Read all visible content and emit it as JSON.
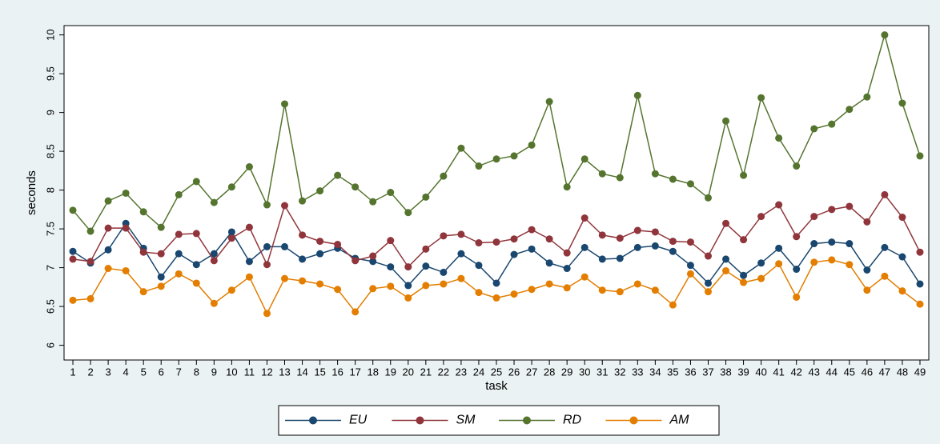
{
  "chart_data": {
    "type": "line",
    "x_label": "task",
    "y_label": "seconds",
    "x": [
      1,
      2,
      3,
      4,
      5,
      6,
      7,
      8,
      9,
      10,
      11,
      12,
      13,
      14,
      15,
      16,
      17,
      18,
      19,
      20,
      21,
      22,
      23,
      24,
      25,
      26,
      27,
      28,
      29,
      30,
      31,
      32,
      33,
      34,
      35,
      36,
      37,
      38,
      39,
      40,
      41,
      42,
      43,
      44,
      45,
      46,
      47,
      48,
      49
    ],
    "xlim": [
      0.5,
      49.5
    ],
    "xticks": [
      1,
      2,
      3,
      4,
      5,
      6,
      7,
      8,
      9,
      10,
      11,
      12,
      13,
      14,
      15,
      16,
      17,
      18,
      19,
      20,
      21,
      22,
      23,
      24,
      25,
      26,
      27,
      28,
      29,
      30,
      31,
      32,
      33,
      34,
      35,
      36,
      37,
      38,
      39,
      40,
      41,
      42,
      43,
      44,
      45,
      46,
      47,
      48,
      49
    ],
    "ylim": [
      5.81,
      10.12
    ],
    "yticks": [
      6,
      6.5,
      7,
      7.5,
      8,
      8.5,
      9,
      9.5,
      10
    ],
    "legend": "bottom",
    "series": [
      {
        "name": "EU",
        "color": "#1a476f",
        "values": [
          7.21,
          7.06,
          7.23,
          7.57,
          7.25,
          6.88,
          7.18,
          7.04,
          7.18,
          7.46,
          7.08,
          7.27,
          7.27,
          7.11,
          7.18,
          7.25,
          7.12,
          7.08,
          7.01,
          6.77,
          7.02,
          6.94,
          7.18,
          7.03,
          6.8,
          7.17,
          7.24,
          7.06,
          6.99,
          7.26,
          7.11,
          7.12,
          7.26,
          7.28,
          7.21,
          7.03,
          6.8,
          7.11,
          6.9,
          7.06,
          7.25,
          6.98,
          7.31,
          7.33,
          7.31,
          6.97,
          7.26,
          7.14,
          6.79
        ]
      },
      {
        "name": "SM",
        "color": "#90353b",
        "values": [
          7.11,
          7.08,
          7.51,
          7.51,
          7.2,
          7.18,
          7.43,
          7.44,
          7.09,
          7.38,
          7.52,
          7.04,
          7.8,
          7.42,
          7.34,
          7.3,
          7.09,
          7.15,
          7.35,
          7.01,
          7.24,
          7.41,
          7.43,
          7.32,
          7.33,
          7.37,
          7.49,
          7.37,
          7.19,
          7.64,
          7.42,
          7.38,
          7.48,
          7.46,
          7.34,
          7.33,
          7.15,
          7.57,
          7.36,
          7.66,
          7.81,
          7.4,
          7.66,
          7.75,
          7.79,
          7.59,
          7.94,
          7.65,
          7.2
        ]
      },
      {
        "name": "RD",
        "color": "#55752f",
        "values": [
          7.74,
          7.47,
          7.86,
          7.96,
          7.72,
          7.52,
          7.94,
          8.11,
          7.84,
          8.04,
          8.3,
          7.81,
          9.11,
          7.86,
          7.99,
          8.19,
          8.04,
          7.85,
          7.97,
          7.71,
          7.91,
          8.18,
          8.54,
          8.31,
          8.4,
          8.44,
          8.58,
          9.14,
          8.04,
          8.4,
          8.21,
          8.16,
          9.22,
          8.21,
          8.14,
          8.08,
          7.9,
          8.89,
          8.19,
          9.19,
          8.67,
          8.31,
          8.79,
          8.85,
          9.04,
          9.2,
          10.0,
          9.12,
          8.44
        ]
      },
      {
        "name": "AM",
        "color": "#e37e00",
        "values": [
          6.58,
          6.6,
          6.99,
          6.96,
          6.69,
          6.76,
          6.92,
          6.8,
          6.54,
          6.71,
          6.88,
          6.41,
          6.86,
          6.83,
          6.79,
          6.72,
          6.43,
          6.73,
          6.76,
          6.61,
          6.77,
          6.79,
          6.86,
          6.68,
          6.61,
          6.66,
          6.72,
          6.79,
          6.74,
          6.88,
          6.71,
          6.69,
          6.79,
          6.71,
          6.52,
          6.92,
          6.69,
          6.96,
          6.81,
          6.86,
          7.05,
          6.62,
          7.07,
          7.1,
          7.04,
          6.71,
          6.89,
          6.7,
          6.53
        ]
      }
    ]
  }
}
